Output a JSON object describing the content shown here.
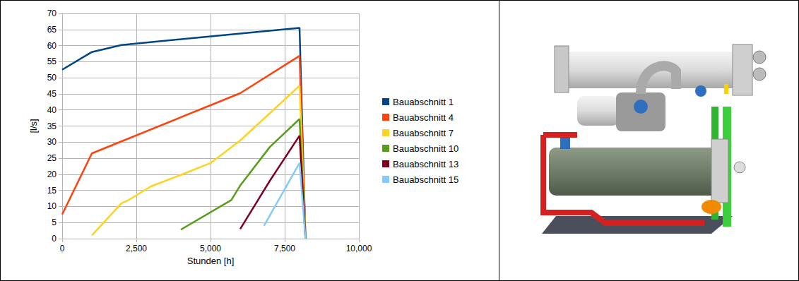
{
  "chart_data": {
    "type": "line",
    "x_label": "Stunden [h]",
    "y_label": "[l/s]",
    "xlim": [
      0,
      10000
    ],
    "xticks": [
      0,
      2500,
      5000,
      7500,
      10000
    ],
    "ylim": [
      0,
      70
    ],
    "yticks": [
      0,
      5,
      10,
      15,
      20,
      25,
      30,
      35,
      40,
      45,
      50,
      55,
      60,
      65,
      70
    ],
    "grid": true,
    "legend": "right",
    "series": [
      {
        "name": "Bauabschnitt 1",
        "color": "#004586",
        "x": [
          0,
          1000,
          2000,
          8000,
          8200
        ],
        "values": [
          52.5,
          58,
          60.2,
          65.5,
          0
        ]
      },
      {
        "name": "Bauabschnitt 4",
        "color": "#ff420e",
        "x": [
          0,
          1000,
          6000,
          8000,
          8200
        ],
        "values": [
          7.5,
          26.5,
          45.2,
          56.8,
          0
        ]
      },
      {
        "name": "Bauabschnitt 7",
        "color": "#ffd320",
        "x": [
          1000,
          2000,
          2200,
          3000,
          4000,
          5000,
          6000,
          8000,
          8200
        ],
        "values": [
          1,
          11,
          11.8,
          16.3,
          19.8,
          23.5,
          30.5,
          47.5,
          0
        ]
      },
      {
        "name": "Bauabschnitt 10",
        "color": "#579d1c",
        "x": [
          4000,
          5700,
          6000,
          7000,
          8000,
          8200
        ],
        "values": [
          2.8,
          12,
          16.5,
          28.5,
          37.2,
          0
        ]
      },
      {
        "name": "Bauabschnitt 13",
        "color": "#7e0021",
        "x": [
          6000,
          6600,
          7000,
          8000,
          8200
        ],
        "values": [
          3,
          12,
          18,
          32,
          0
        ]
      },
      {
        "name": "Bauabschnitt 15",
        "color": "#83caff",
        "x": [
          6800,
          8000,
          8200
        ],
        "values": [
          4,
          23.5,
          0
        ]
      }
    ]
  }
}
